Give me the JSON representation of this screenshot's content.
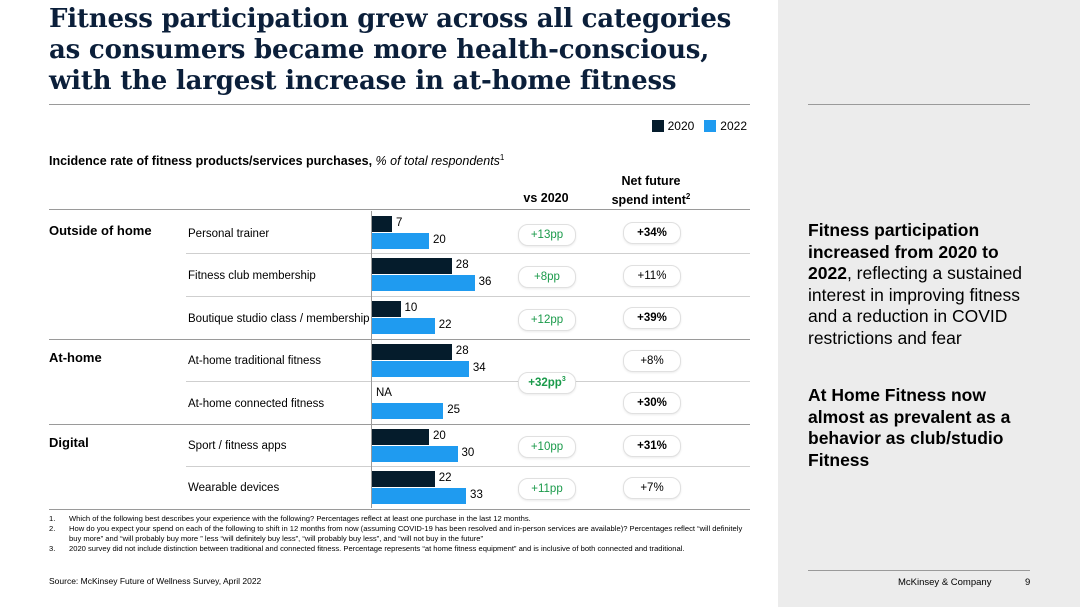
{
  "title": "Fitness participation grew across all categories as consumers became more health-conscious, with the largest increase in at-home fitness",
  "legend": [
    {
      "label": "2020",
      "color": "#051c2c"
    },
    {
      "label": "2022",
      "color": "#1f9bf0"
    }
  ],
  "subtitle": {
    "bold": "Incidence rate of fitness products/services purchases,",
    "italic": "% of total respondents",
    "sup": "1"
  },
  "columns": {
    "vs2020": "vs 2020",
    "intent_line1": "Net future",
    "intent_line2": "spend intent",
    "intent_sup": "2"
  },
  "groups": {
    "outside": "Outside of home",
    "athome": "At-home",
    "digital": "Digital"
  },
  "chart_data": {
    "type": "bar",
    "orientation": "horizontal",
    "title": "Incidence rate of fitness products/services purchases, % of total respondents",
    "categories": [
      "Personal trainer",
      "Fitness club membership",
      "Boutique studio class / membership",
      "At-home traditional fitness",
      "At-home connected fitness",
      "Sport / fitness apps",
      "Wearable devices"
    ],
    "series": [
      {
        "name": "2020",
        "values": [
          7,
          28,
          10,
          28,
          null,
          20,
          22
        ],
        "labels": [
          "7",
          "28",
          "10",
          "28",
          "NA",
          "20",
          "22"
        ]
      },
      {
        "name": "2022",
        "values": [
          20,
          36,
          22,
          34,
          25,
          30,
          33
        ],
        "labels": [
          "20",
          "36",
          "22",
          "34",
          "25",
          "30",
          "33"
        ]
      }
    ],
    "xlim": [
      0,
      36
    ]
  },
  "vs2020": [
    "+13pp",
    "+8pp",
    "+12pp",
    "+32pp",
    "+10pp",
    "+11pp"
  ],
  "vs2020_sup": "3",
  "spend_intent": [
    "+34%",
    "+11%",
    "+39%",
    "+8%",
    "+30%",
    "+31%",
    "+7%"
  ],
  "sidebar": {
    "p1_bold": "Fitness participation increased from 2020 to 2022",
    "p1_rest": ", reflecting a sustained interest in improving fitness and a reduction in COVID restrictions and fear",
    "p2_bold": "At Home Fitness now almost as prevalent as a behavior as club/studio Fitness"
  },
  "footnotes": [
    {
      "n": "1.",
      "text": "Which of the following best describes your experience with the following? Percentages reflect at least one purchase in the last 12 months."
    },
    {
      "n": "2.",
      "text": "How do you expect your spend on each of the following to shift in 12 months from now (assuming COVID-19 has been resolved and in-person services are available)? Percentages reflect “will definitely buy more” and “will probably buy more ” less “will definitely buy less”, “will probably buy less”, and “will not buy in the future”"
    },
    {
      "n": "3.",
      "text": "2020 survey did not include distinction between traditional and connected fitness. Percentage represents “at home fitness equipment” and is inclusive of both connected and traditional."
    }
  ],
  "source": "Source: McKinsey Future of Wellness Survey, April 2022",
  "brand": "McKinsey & Company",
  "page_number": "9"
}
